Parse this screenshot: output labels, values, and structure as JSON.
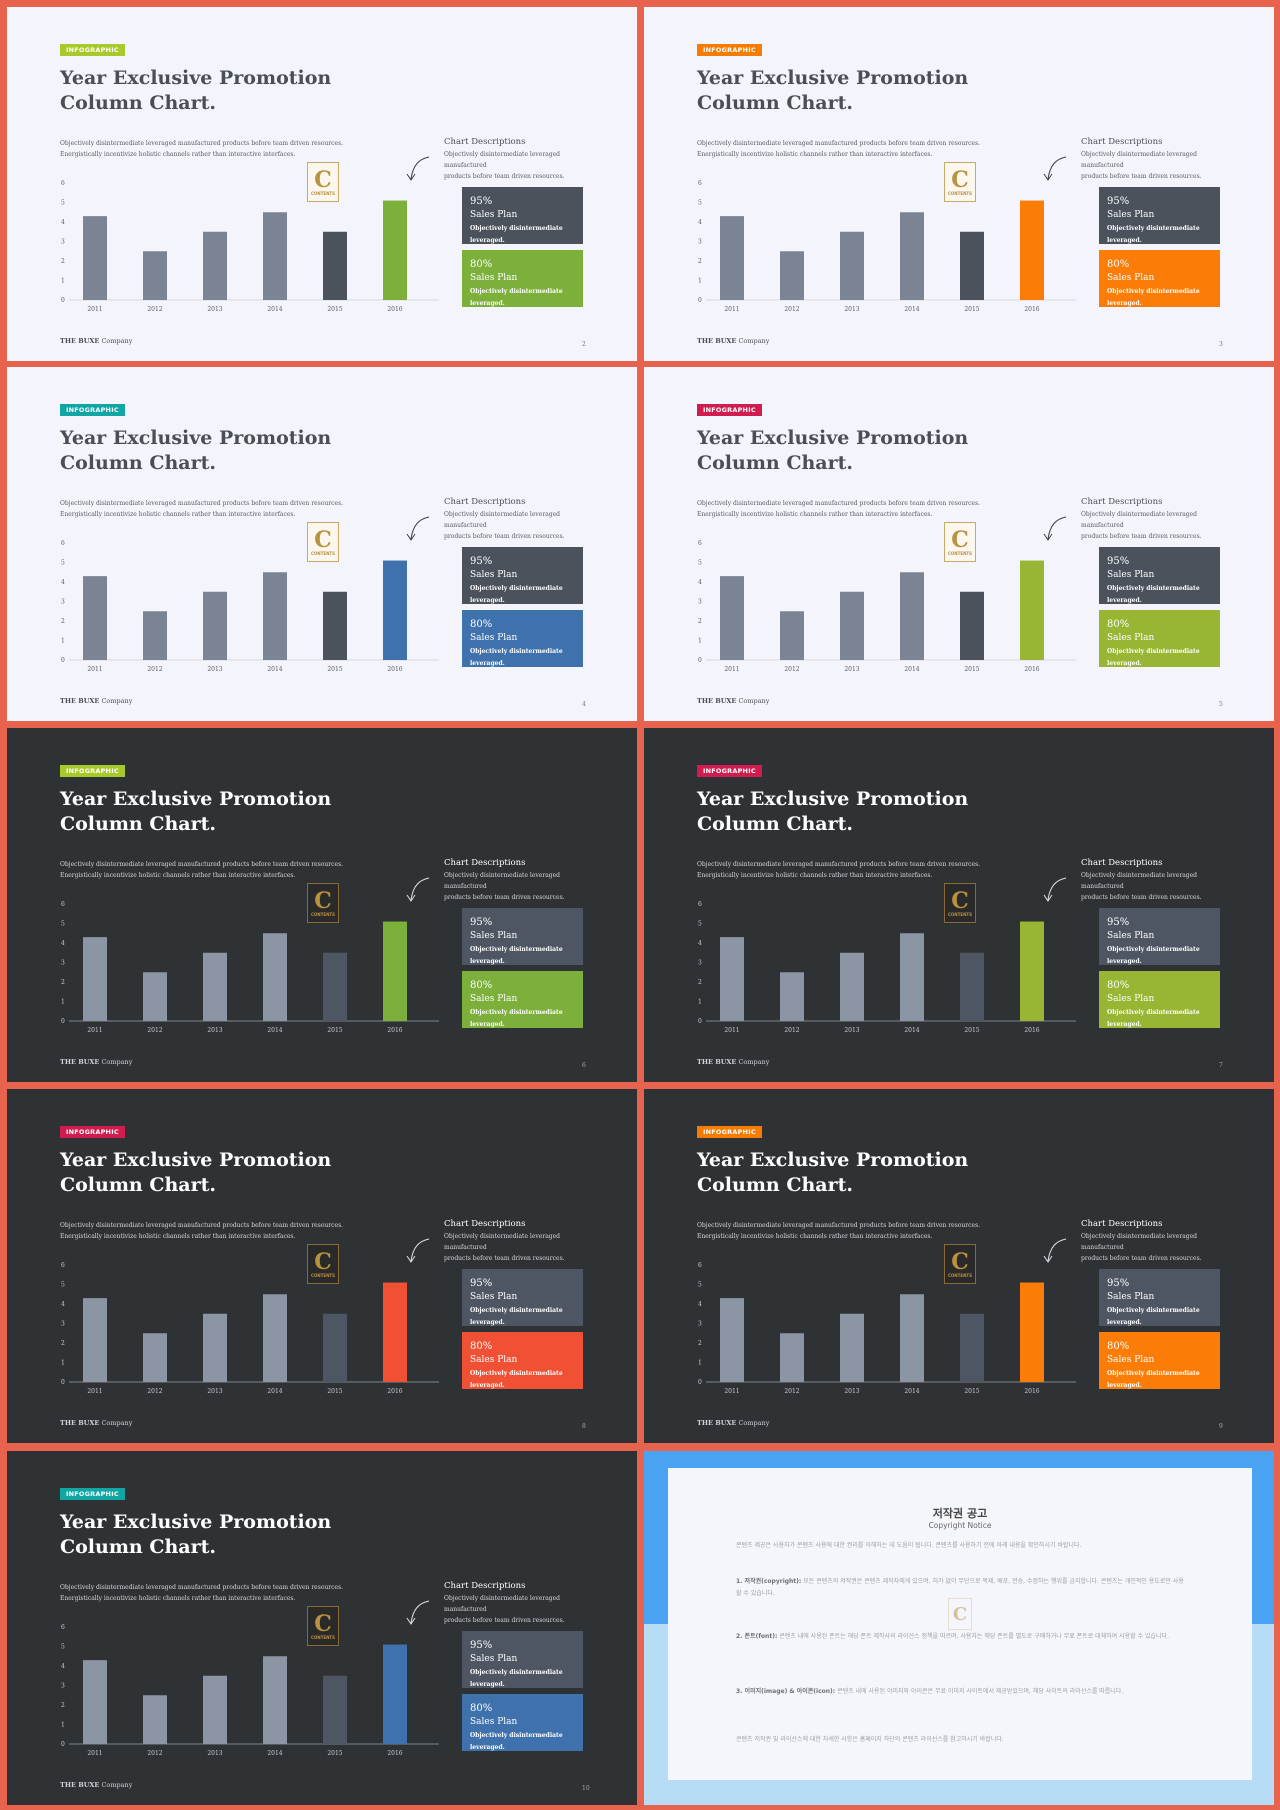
{
  "slide_template": {
    "tag": "INFOGRAPHIC",
    "title_line1": "Year Exclusive Promotion",
    "title_line2": "Column Chart.",
    "desc_line1": "Objectively disintermediate leveraged manufactured products before team driven resources.",
    "desc_line2": "Energistically incentivize holistic channels rather than interactive interfaces.",
    "side_heading": "Chart Descriptions",
    "side_text_line1": "Objectively disintermediate leveraged manufactured",
    "side_text_line2": "products before team driven resources.",
    "box1": {
      "pct": "95%",
      "label": "Sales Plan",
      "sub": "Objectively disintermediate leveraged."
    },
    "box2": {
      "pct": "80%",
      "label": "Sales Plan",
      "sub": "Objectively disintermediate leveraged."
    },
    "footer_brand": "THE BUXE",
    "footer_company": "Company",
    "logo_letter": "C",
    "logo_text": "CONTENTS"
  },
  "chart_data": {
    "type": "bar",
    "categories": [
      "2011",
      "2012",
      "2013",
      "2014",
      "2015",
      "2016"
    ],
    "values": [
      4.3,
      2.5,
      3.5,
      4.5,
      3.5,
      5.1
    ],
    "ylim": [
      0,
      6
    ],
    "yticks": [
      "0",
      "1",
      "2",
      "3",
      "4",
      "5",
      "6"
    ],
    "grid": false
  },
  "slides": [
    {
      "theme": "light",
      "accent": "#a8c92a",
      "accent_bar": "#7cb03b",
      "page": "2"
    },
    {
      "theme": "light",
      "accent": "#f57c00",
      "accent_bar": "#fb7d08",
      "page": "3"
    },
    {
      "theme": "light",
      "accent": "#11a5a3",
      "accent_bar": "#3f72ad",
      "page": "4"
    },
    {
      "theme": "light",
      "accent": "#d11c4f",
      "accent_bar": "#98b634",
      "page": "5"
    },
    {
      "theme": "dark",
      "accent": "#a8c92a",
      "accent_bar": "#7cb03b",
      "page": "6"
    },
    {
      "theme": "dark",
      "accent": "#d11c4f",
      "accent_bar": "#98b634",
      "page": "7"
    },
    {
      "theme": "dark",
      "accent": "#d11c4f",
      "accent_bar": "#f05033",
      "page": "8"
    },
    {
      "theme": "dark",
      "accent": "#f57c00",
      "accent_bar": "#fb7d08",
      "page": "9"
    },
    {
      "theme": "dark",
      "accent": "#11a5a3",
      "accent_bar": "#3f72ad",
      "page": "10"
    }
  ],
  "colors": {
    "bar_gray_light": "#7a8494",
    "bar_gray_dark_light": "#4c525b",
    "bar_gray_on_dark": "#8b95a3",
    "bar_gray_dark_on_dark": "#4e5663",
    "background_border": "#e8634d"
  },
  "notice": {
    "title": "저작권 공고",
    "subtitle": "Copyright Notice",
    "intro": "콘텐츠 제공은 사용자가 콘텐츠 사용에 대한 권리를 이해하는 데 도움이 됩니다. 콘텐츠를 사용하기 전에 아래 내용을 확인하시기 바랍니다.",
    "p1_head": "1. 저작권(copyright):",
    "p1": "모든 콘텐츠의 저작권은 콘텐츠 제작자에게 있으며, 허가 없이 무단으로 복제, 배포, 전송, 수정하는 행위를 금지합니다. 콘텐츠는 개인적인 용도로만 사용할 수 있습니다.",
    "p2_head": "2. 폰트(font):",
    "p2": "콘텐츠 내에 사용된 폰트는 해당 폰트 제작사의 라이선스 정책을 따르며, 사용자는 해당 폰트를 별도로 구매하거나 무료 폰트로 대체하여 사용할 수 있습니다.",
    "p3_head": "3. 이미지(image) & 아이콘(icon):",
    "p3": "콘텐츠 내에 사용된 이미지와 아이콘은 무료 이미지 사이트에서 제공받았으며, 해당 사이트의 라이선스를 따릅니다.",
    "outro": "콘텐츠 저작권 및 라이선스에 대한 자세한 사항은 홈페이지 하단의 콘텐츠 라이선스를 참고하시기 바랍니다."
  }
}
